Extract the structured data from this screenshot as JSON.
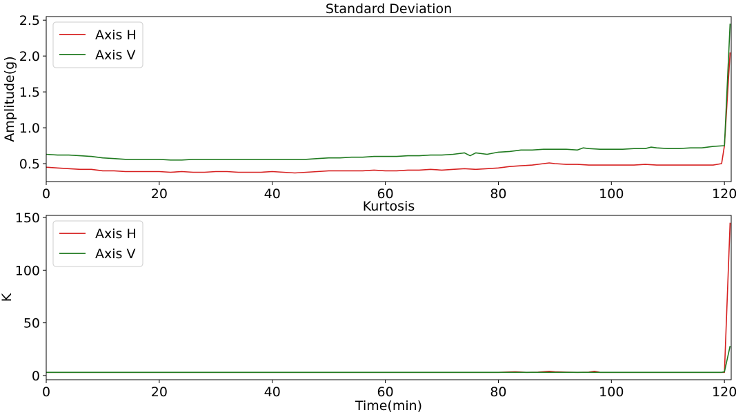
{
  "colors": {
    "axis_h": "#d62020",
    "axis_v": "#1f7a1f"
  },
  "chart_data": [
    {
      "type": "line",
      "title": "Standard Deviation",
      "xlabel": "",
      "ylabel": "Amplitude(g)",
      "xlim": [
        0,
        121.2
      ],
      "ylim": [
        0.25,
        2.55
      ],
      "xticks": [
        0,
        20,
        40,
        60,
        80,
        100,
        120
      ],
      "yticks": [
        0.5,
        1.0,
        1.5,
        2.0,
        2.5
      ],
      "ytick_labels": [
        "0.5",
        "1.0",
        "1.5",
        "2.0",
        "2.5"
      ],
      "legend_position": "top-left",
      "grid": false,
      "series": [
        {
          "name": "Axis H",
          "color": "#d62020",
          "x": [
            0,
            2,
            4,
            6,
            8,
            10,
            12,
            14,
            16,
            18,
            20,
            22,
            24,
            26,
            28,
            30,
            32,
            34,
            36,
            38,
            40,
            42,
            44,
            46,
            48,
            50,
            52,
            54,
            56,
            58,
            60,
            62,
            64,
            66,
            68,
            70,
            72,
            74,
            76,
            78,
            80,
            82,
            84,
            86,
            88,
            89,
            90,
            92,
            94,
            96,
            98,
            100,
            102,
            104,
            106,
            108,
            110,
            112,
            114,
            116,
            118,
            119.5,
            120,
            121
          ],
          "y": [
            0.45,
            0.44,
            0.43,
            0.42,
            0.42,
            0.4,
            0.4,
            0.39,
            0.39,
            0.39,
            0.39,
            0.38,
            0.39,
            0.38,
            0.38,
            0.39,
            0.39,
            0.38,
            0.38,
            0.38,
            0.39,
            0.38,
            0.37,
            0.38,
            0.39,
            0.4,
            0.4,
            0.4,
            0.4,
            0.41,
            0.4,
            0.4,
            0.41,
            0.41,
            0.42,
            0.41,
            0.42,
            0.43,
            0.42,
            0.43,
            0.44,
            0.46,
            0.47,
            0.48,
            0.5,
            0.51,
            0.5,
            0.49,
            0.49,
            0.48,
            0.48,
            0.48,
            0.48,
            0.48,
            0.49,
            0.48,
            0.48,
            0.48,
            0.48,
            0.48,
            0.48,
            0.5,
            0.75,
            2.05
          ]
        },
        {
          "name": "Axis V",
          "color": "#1f7a1f",
          "x": [
            0,
            2,
            4,
            6,
            8,
            10,
            12,
            14,
            16,
            18,
            20,
            22,
            24,
            26,
            28,
            30,
            32,
            34,
            36,
            38,
            40,
            42,
            44,
            46,
            48,
            50,
            52,
            54,
            56,
            58,
            60,
            62,
            64,
            66,
            68,
            70,
            72,
            74,
            75,
            76,
            78,
            80,
            82,
            84,
            86,
            88,
            90,
            92,
            94,
            95,
            96,
            98,
            100,
            102,
            104,
            106,
            107,
            108,
            110,
            112,
            114,
            116,
            118,
            120,
            121
          ],
          "y": [
            0.63,
            0.62,
            0.62,
            0.61,
            0.6,
            0.58,
            0.57,
            0.56,
            0.56,
            0.56,
            0.56,
            0.55,
            0.55,
            0.56,
            0.56,
            0.56,
            0.56,
            0.56,
            0.56,
            0.56,
            0.56,
            0.56,
            0.56,
            0.56,
            0.57,
            0.58,
            0.58,
            0.59,
            0.59,
            0.6,
            0.6,
            0.6,
            0.61,
            0.61,
            0.62,
            0.62,
            0.63,
            0.65,
            0.61,
            0.65,
            0.63,
            0.66,
            0.67,
            0.69,
            0.69,
            0.7,
            0.7,
            0.7,
            0.69,
            0.72,
            0.71,
            0.7,
            0.7,
            0.7,
            0.71,
            0.71,
            0.73,
            0.72,
            0.71,
            0.71,
            0.72,
            0.72,
            0.74,
            0.75,
            2.45
          ]
        }
      ]
    },
    {
      "type": "line",
      "title": "Kurtosis",
      "xlabel": "Time(min)",
      "ylabel": "K",
      "xlim": [
        0,
        121.2
      ],
      "ylim": [
        -4,
        152
      ],
      "xticks": [
        0,
        20,
        40,
        60,
        80,
        100,
        120
      ],
      "yticks": [
        0,
        50,
        100,
        150
      ],
      "ytick_labels": [
        "0",
        "50",
        "100",
        "150"
      ],
      "legend_position": "top-left",
      "grid": false,
      "series": [
        {
          "name": "Axis H",
          "color": "#d62020",
          "x": [
            0,
            10,
            20,
            30,
            40,
            50,
            60,
            70,
            80,
            83,
            85,
            87,
            89,
            90,
            92,
            94,
            96,
            97,
            98,
            100,
            110,
            119.5,
            120,
            121
          ],
          "y": [
            3,
            3,
            3,
            3,
            3,
            3,
            3,
            3,
            3,
            3.5,
            3,
            3.2,
            4,
            3.5,
            3.2,
            3,
            3.2,
            4,
            3,
            3,
            3,
            3,
            3,
            145
          ]
        },
        {
          "name": "Axis V",
          "color": "#1f7a1f",
          "x": [
            0,
            10,
            20,
            30,
            40,
            50,
            60,
            70,
            80,
            90,
            100,
            110,
            119.5,
            120,
            121
          ],
          "y": [
            3,
            3,
            3,
            3,
            3,
            3,
            3,
            3,
            3,
            3,
            3,
            3,
            3,
            3.5,
            28
          ]
        }
      ]
    }
  ]
}
